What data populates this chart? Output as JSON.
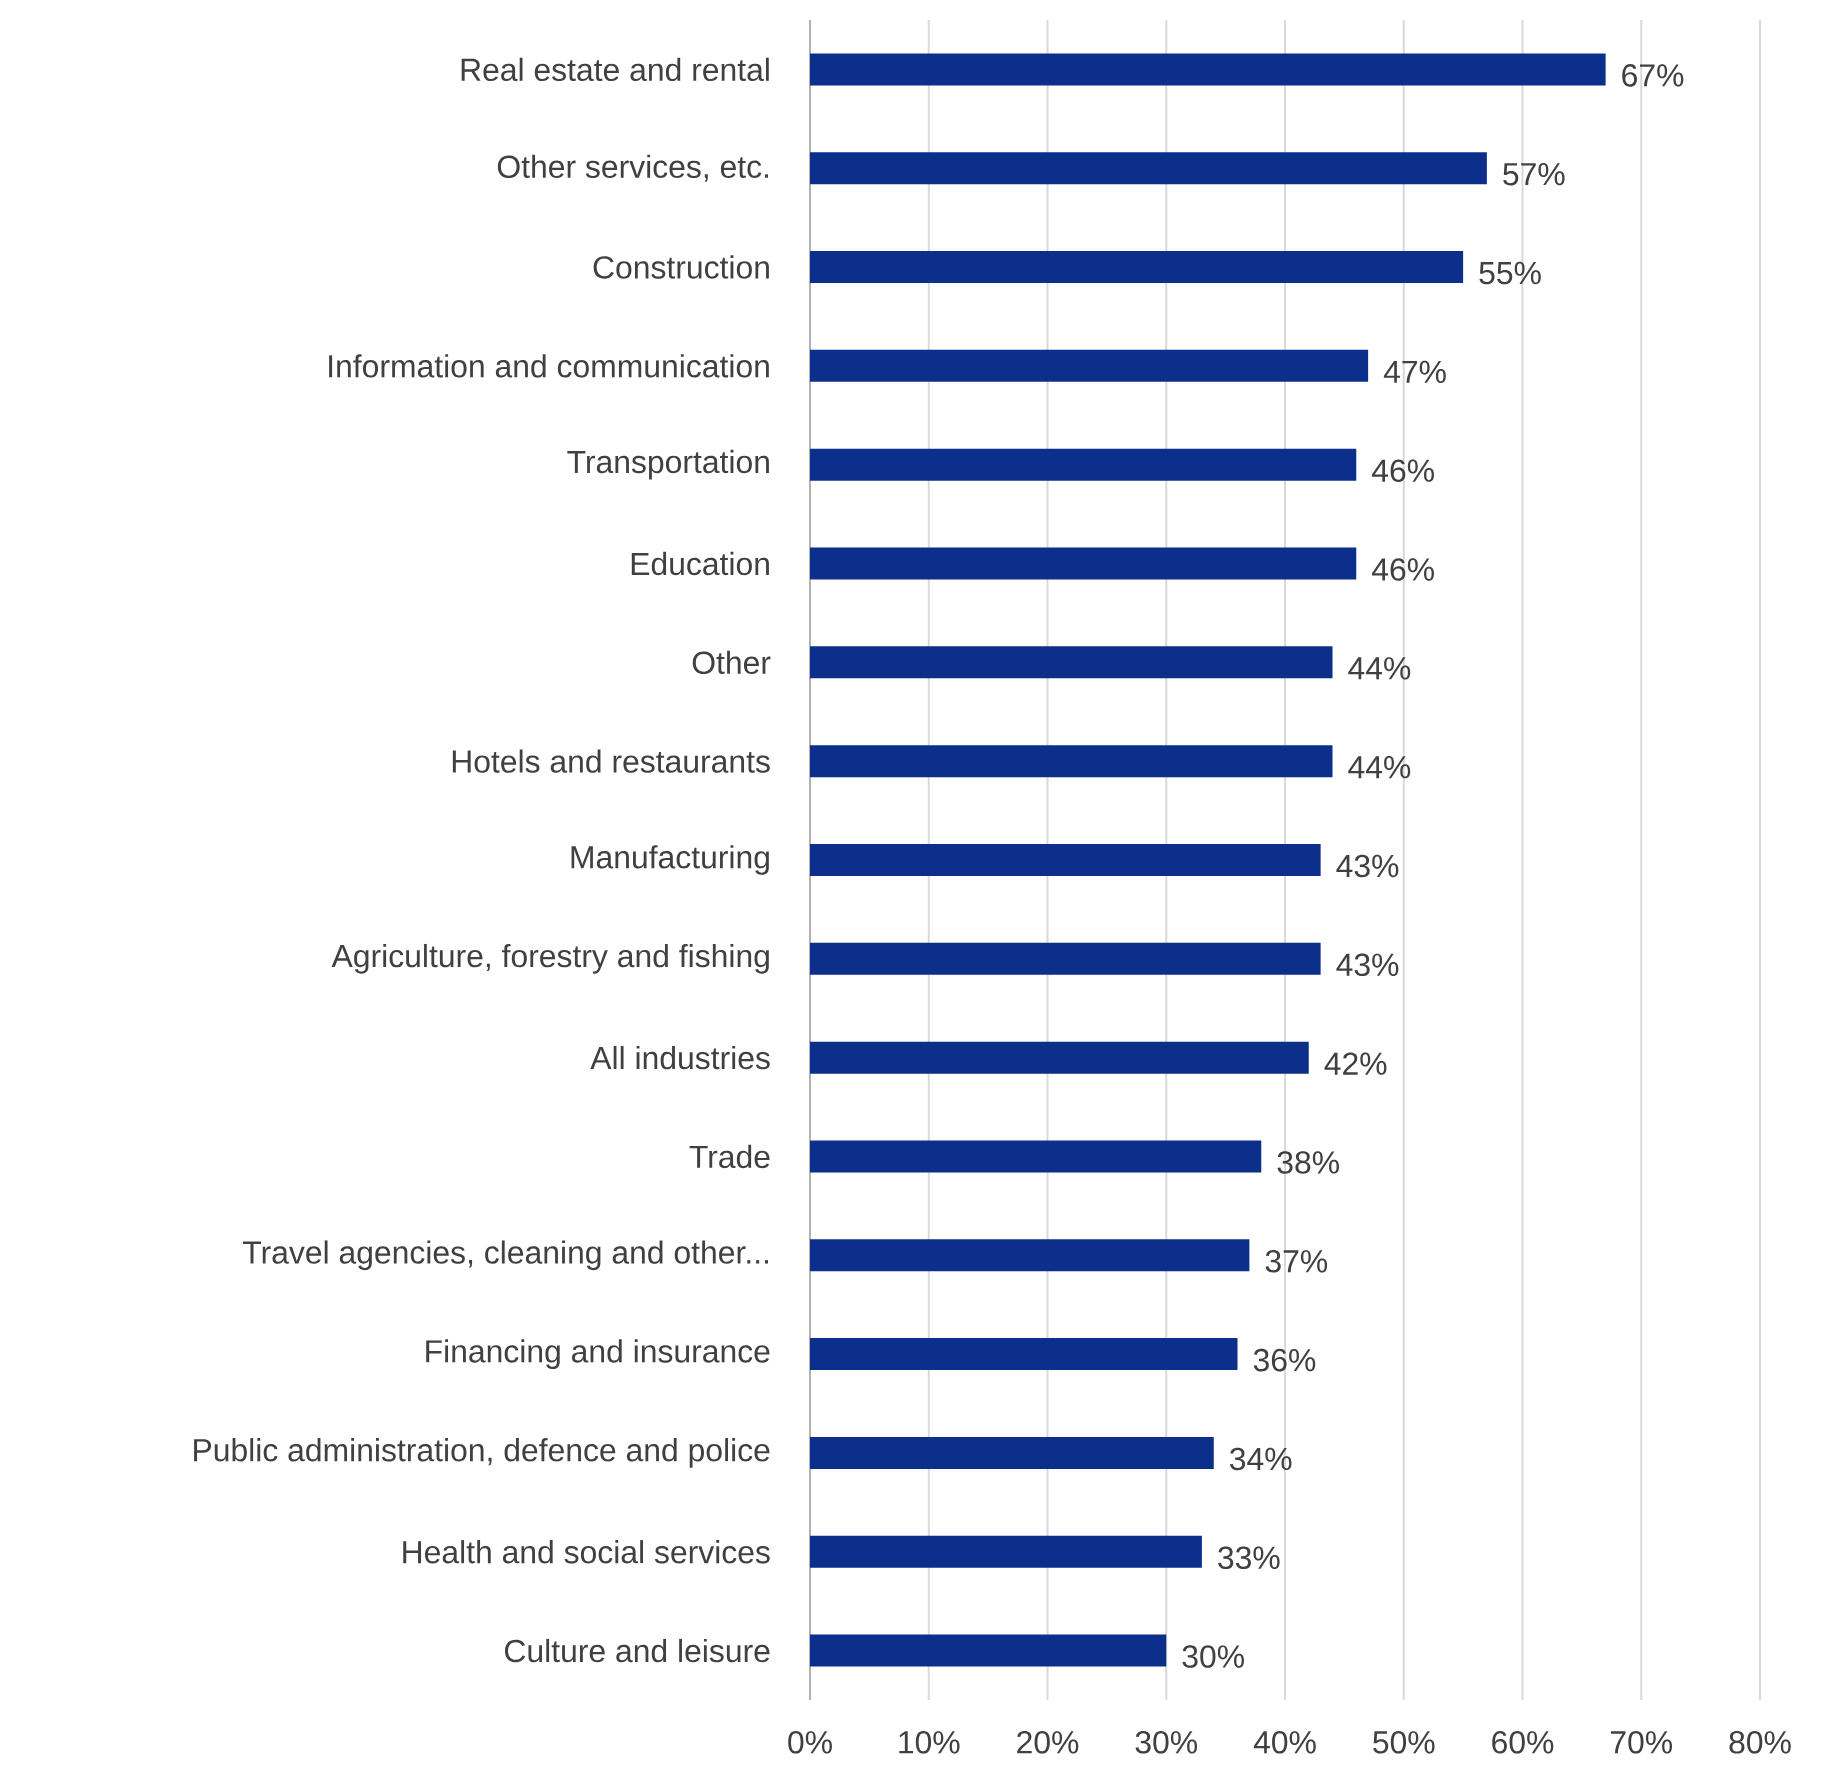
{
  "chart_data": {
    "type": "bar",
    "orientation": "horizontal",
    "categories": [
      "Real estate and rental",
      "Other services, etc.",
      "Construction",
      "Information and communication",
      "Transportation",
      "Education",
      "Other",
      "Hotels and restaurants",
      "Manufacturing",
      "Agriculture, forestry and fishing",
      "All industries",
      "Trade",
      "Travel agencies, cleaning and other...",
      "Financing and insurance",
      "Public administration, defence and police",
      "Health and social services",
      "Culture and leisure"
    ],
    "values": [
      67,
      57,
      55,
      47,
      46,
      46,
      44,
      44,
      43,
      43,
      42,
      38,
      37,
      36,
      34,
      33,
      30
    ],
    "value_labels": [
      "67%",
      "57%",
      "55%",
      "47%",
      "46%",
      "46%",
      "44%",
      "44%",
      "43%",
      "43%",
      "42%",
      "38%",
      "37%",
      "36%",
      "34%",
      "33%",
      "30%"
    ],
    "color": "#0b2f8a",
    "xlim": [
      0,
      80
    ],
    "xticks": [
      {
        "value": 0,
        "label": "0%"
      },
      {
        "value": 10,
        "label": "10%"
      },
      {
        "value": 20,
        "label": "20%"
      },
      {
        "value": 30,
        "label": "30%"
      },
      {
        "value": 40,
        "label": "40%"
      },
      {
        "value": 50,
        "label": "50%"
      },
      {
        "value": 60,
        "label": "60%"
      },
      {
        "value": 70,
        "label": "70%"
      },
      {
        "value": 80,
        "label": "80%"
      }
    ],
    "grid": "x"
  }
}
